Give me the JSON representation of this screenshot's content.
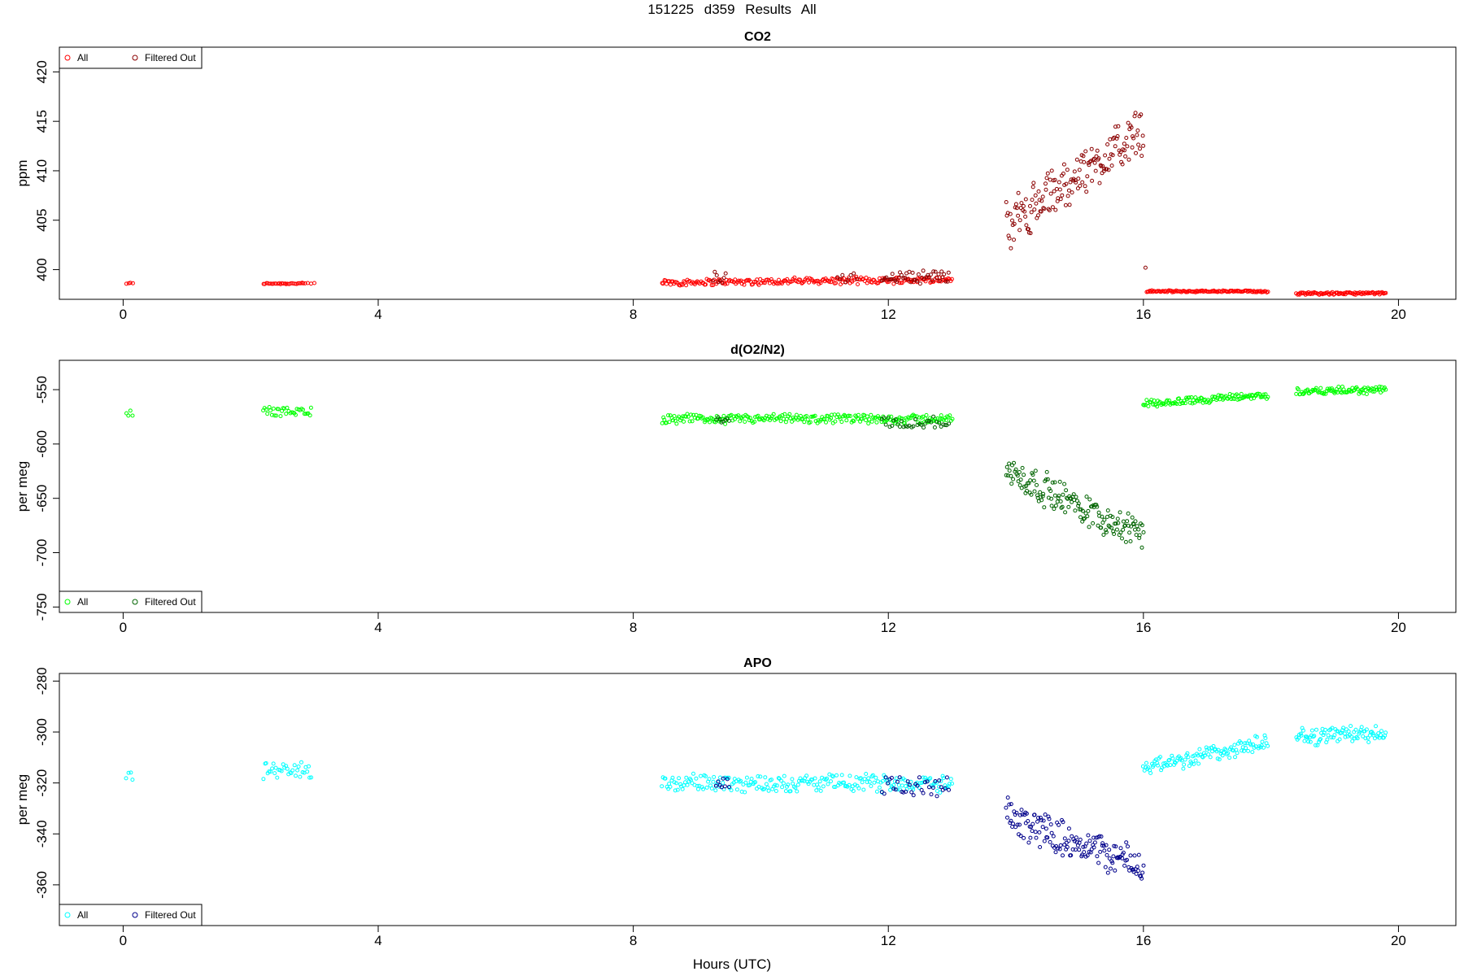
{
  "figure_title": "151225   d359   Results All",
  "x_axis_label": "Hours (UTC)",
  "chart_data": [
    {
      "type": "scatter",
      "title": "CO2",
      "ylabel": "ppm",
      "xlim": [
        -1,
        20.9
      ],
      "ylim": [
        397,
        422.5
      ],
      "xticks": [
        0,
        4,
        8,
        12,
        16,
        20
      ],
      "yticks": [
        400,
        405,
        410,
        415,
        420
      ],
      "grid": false,
      "legend_position": "top-left",
      "series": [
        {
          "name": "All",
          "color": "#ff0000",
          "segments": [
            {
              "x0": 0.05,
              "x1": 0.15,
              "n": 4,
              "base": 398.6,
              "amp": 0.1
            },
            {
              "x0": 2.2,
              "x1": 2.85,
              "n": 30,
              "base": 398.6,
              "amp": 0.1
            },
            {
              "x0": 2.9,
              "x1": 3.0,
              "n": 3,
              "base": 398.6,
              "amp": 0.1
            },
            {
              "x0": 8.45,
              "x1": 13.0,
              "n": 240,
              "base": 398.7,
              "amp": 0.4,
              "trend": 0.3
            },
            {
              "x0": 16.05,
              "x1": 17.95,
              "n": 120,
              "base": 397.8,
              "amp": 0.12
            },
            {
              "x0": 18.4,
              "x1": 19.8,
              "n": 90,
              "base": 397.6,
              "amp": 0.15
            }
          ]
        },
        {
          "name": "Filtered Out",
          "color": "#8b0000",
          "segments": [
            {
              "x0": 9.25,
              "x1": 9.45,
              "n": 8,
              "base": 399.2,
              "amp": 0.8
            },
            {
              "x0": 11.2,
              "x1": 11.5,
              "n": 8,
              "base": 399.2,
              "amp": 0.7
            },
            {
              "x0": 11.9,
              "x1": 12.95,
              "n": 45,
              "base": 399.3,
              "amp": 0.8
            },
            {
              "x0": 13.85,
              "x1": 16.0,
              "n": 170,
              "base": 404.5,
              "amp": 2.8,
              "trend": 9.5
            },
            {
              "x0": 16.02,
              "x1": 16.04,
              "n": 1,
              "base": 400.2,
              "amp": 0
            }
          ]
        }
      ]
    },
    {
      "type": "scatter",
      "title": "d(O2/N2)",
      "ylabel": "per meg",
      "xlim": [
        -1,
        20.9
      ],
      "ylim": [
        -755,
        -523
      ],
      "xticks": [
        0,
        4,
        8,
        12,
        16,
        20
      ],
      "yticks": [
        -550,
        -600,
        -650,
        -700,
        -750
      ],
      "grid": false,
      "legend_position": "bottom-left",
      "series": [
        {
          "name": "All",
          "color": "#00ff00",
          "segments": [
            {
              "x0": 0.05,
              "x1": 0.15,
              "n": 4,
              "base": -572,
              "amp": 4
            },
            {
              "x0": 2.2,
              "x1": 2.95,
              "n": 35,
              "base": -570,
              "amp": 5
            },
            {
              "x0": 8.45,
              "x1": 13.0,
              "n": 240,
              "base": -577,
              "amp": 5
            },
            {
              "x0": 16.0,
              "x1": 17.95,
              "n": 120,
              "base": -563,
              "amp": 4,
              "trend": 8
            },
            {
              "x0": 18.4,
              "x1": 19.8,
              "n": 90,
              "base": -552,
              "amp": 4,
              "trend": 2
            }
          ]
        },
        {
          "name": "Filtered Out",
          "color": "#006400",
          "segments": [
            {
              "x0": 9.3,
              "x1": 9.5,
              "n": 8,
              "base": -578,
              "amp": 4
            },
            {
              "x0": 11.9,
              "x1": 12.95,
              "n": 35,
              "base": -580,
              "amp": 6
            },
            {
              "x0": 13.85,
              "x1": 16.0,
              "n": 160,
              "base": -625,
              "amp": 18,
              "trend": -60
            }
          ]
        }
      ]
    },
    {
      "type": "scatter",
      "title": "APO",
      "ylabel": "per meg",
      "xlim": [
        -1,
        20.9
      ],
      "ylim": [
        -376,
        -277
      ],
      "xticks": [
        0,
        4,
        8,
        12,
        16,
        20
      ],
      "yticks": [
        -280,
        -300,
        -320,
        -340,
        -360
      ],
      "grid": false,
      "legend_position": "bottom-left",
      "series": [
        {
          "name": "All",
          "color": "#00ffff",
          "segments": [
            {
              "x0": 0.05,
              "x1": 0.15,
              "n": 4,
              "base": -317,
              "amp": 3
            },
            {
              "x0": 2.2,
              "x1": 2.95,
              "n": 35,
              "base": -315,
              "amp": 4
            },
            {
              "x0": 8.45,
              "x1": 13.0,
              "n": 240,
              "base": -320,
              "amp": 4
            },
            {
              "x0": 16.0,
              "x1": 17.95,
              "n": 120,
              "base": -314,
              "amp": 4,
              "trend": 10
            },
            {
              "x0": 18.4,
              "x1": 19.8,
              "n": 90,
              "base": -302,
              "amp": 4,
              "trend": 2
            }
          ]
        },
        {
          "name": "Filtered Out",
          "color": "#00008b",
          "segments": [
            {
              "x0": 9.3,
              "x1": 9.5,
              "n": 8,
              "base": -321,
              "amp": 3
            },
            {
              "x0": 11.9,
              "x1": 12.95,
              "n": 35,
              "base": -322,
              "amp": 5
            },
            {
              "x0": 13.85,
              "x1": 16.0,
              "n": 160,
              "base": -333,
              "amp": 8,
              "trend": -20
            }
          ]
        }
      ]
    }
  ]
}
